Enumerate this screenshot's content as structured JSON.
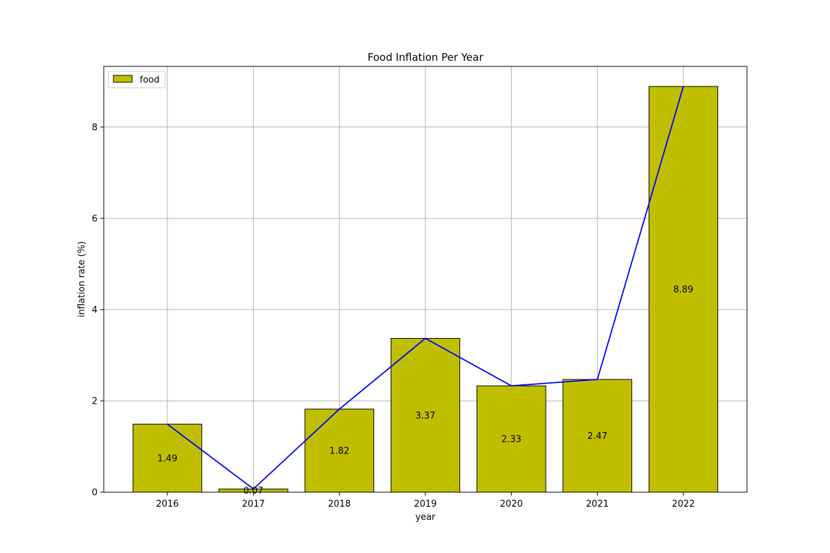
{
  "chart_data": {
    "type": "bar",
    "title": "Food Inflation Per Year",
    "xlabel": "year",
    "ylabel": "inflation rate (%)",
    "categories": [
      "2016",
      "2017",
      "2018",
      "2019",
      "2020",
      "2021",
      "2022"
    ],
    "series": [
      {
        "name": "food",
        "type": "bar",
        "values": [
          1.49,
          0.07,
          1.82,
          3.37,
          2.33,
          2.47,
          8.89
        ]
      },
      {
        "type": "line",
        "values": [
          1.49,
          0.07,
          1.82,
          3.37,
          2.33,
          2.47,
          8.89
        ]
      }
    ],
    "data_labels": [
      "1.49",
      "0.07",
      "1.82",
      "3.37",
      "2.33",
      "2.47",
      "8.89"
    ],
    "ylim": [
      0,
      9.33
    ],
    "yticks": [
      0,
      2,
      4,
      6,
      8
    ],
    "grid": true,
    "legend": {
      "position": "top-left",
      "entries": [
        "food"
      ]
    },
    "colors": {
      "bar_fill": "#bfbf00",
      "bar_edge": "#000000",
      "line": "#0000ff",
      "grid": "#b0b0b0"
    }
  }
}
